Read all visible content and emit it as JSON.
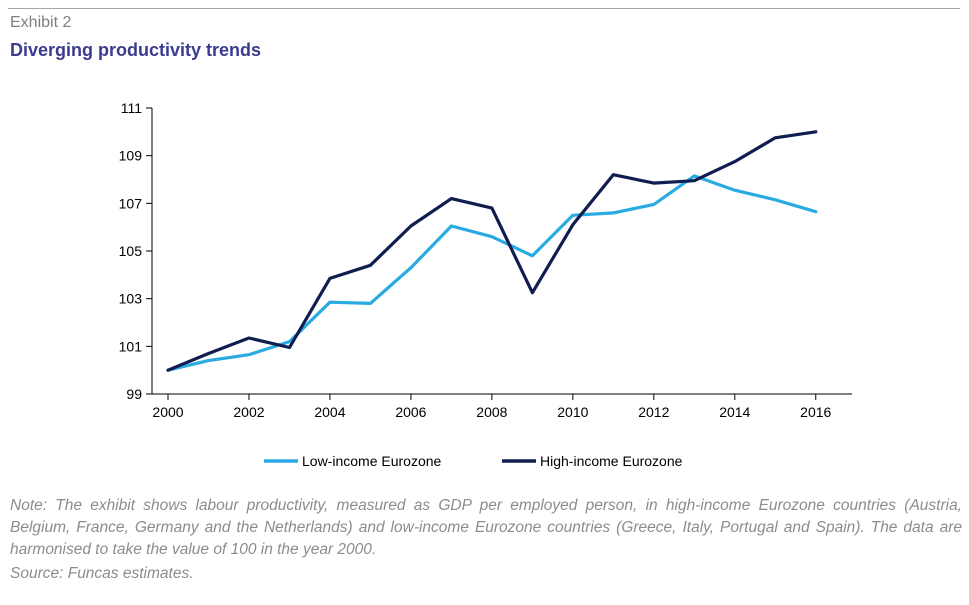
{
  "header": {
    "exhibit_label": "Exhibit 2",
    "title": "Diverging productivity trends"
  },
  "chart_data": {
    "type": "line",
    "title": "Diverging productivity trends",
    "xlabel": "",
    "ylabel": "",
    "xlim": [
      2000,
      2016.5
    ],
    "ylim": [
      99,
      111
    ],
    "x_ticks": [
      2000,
      2002,
      2004,
      2006,
      2008,
      2010,
      2012,
      2014,
      2016
    ],
    "y_ticks": [
      99,
      101,
      103,
      105,
      107,
      109,
      111
    ],
    "legend_position": "bottom",
    "series": [
      {
        "name": "Low-income Eurozone",
        "color": "#29abe2",
        "points": [
          [
            2000,
            100.0
          ],
          [
            2001,
            100.4
          ],
          [
            2002,
            100.65
          ],
          [
            2003,
            101.2
          ],
          [
            2004,
            102.85
          ],
          [
            2005,
            102.8
          ],
          [
            2006,
            104.3
          ],
          [
            2007,
            106.05
          ],
          [
            2008,
            105.6
          ],
          [
            2009,
            104.8
          ],
          [
            2010,
            106.5
          ],
          [
            2011,
            106.6
          ],
          [
            2012,
            106.95
          ],
          [
            2013,
            108.15
          ],
          [
            2014,
            107.55
          ],
          [
            2015,
            107.15
          ],
          [
            2016,
            106.65
          ]
        ]
      },
      {
        "name": "High-income Eurozone",
        "color": "#0f1d4f",
        "points": [
          [
            2000,
            100.0
          ],
          [
            2001,
            100.7
          ],
          [
            2002,
            101.35
          ],
          [
            2003,
            100.95
          ],
          [
            2004,
            103.85
          ],
          [
            2005,
            104.4
          ],
          [
            2006,
            106.05
          ],
          [
            2007,
            107.2
          ],
          [
            2008,
            106.8
          ],
          [
            2009,
            103.25
          ],
          [
            2010,
            106.1
          ],
          [
            2011,
            108.2
          ],
          [
            2012,
            107.85
          ],
          [
            2013,
            107.95
          ],
          [
            2014,
            108.75
          ],
          [
            2015,
            109.75
          ],
          [
            2016,
            110.0
          ]
        ]
      }
    ]
  },
  "footer": {
    "note": "Note: The exhibit shows labour productivity, measured as GDP per employed person, in high-income Eurozone countries (Austria, Belgium, France, Germany and the Netherlands) and low-income Eurozone countries (Greece, Italy, Portugal and Spain). The data are harmonised to take the value of 100 in the year 2000.",
    "source": "Source: Funcas estimates."
  }
}
